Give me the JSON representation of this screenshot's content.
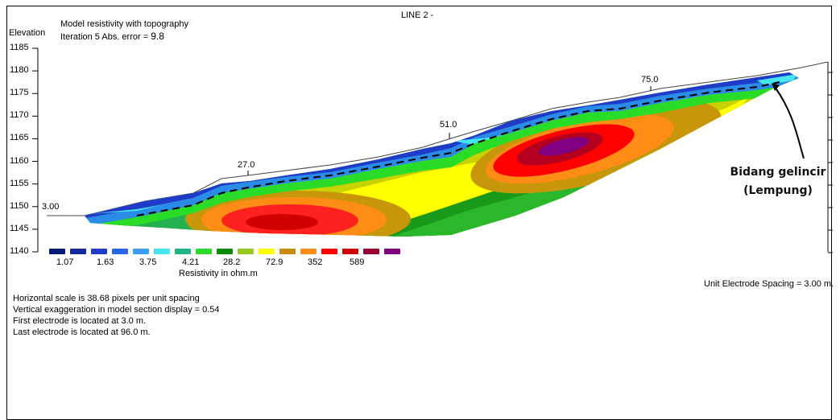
{
  "line_title": "LINE 2 -",
  "model_title": "Model resistivity with topography",
  "iteration": {
    "label": "Iteration 5 Abs. error = ",
    "value": "9.8"
  },
  "axis": {
    "label": "Elevation",
    "ticks": [
      1185,
      1180,
      1175,
      1170,
      1165,
      1160,
      1155,
      1150,
      1145,
      1140
    ]
  },
  "distance_labels": [
    "3.00",
    "27.0",
    "51.0",
    "75.0"
  ],
  "legend": {
    "title": "Resistivity in ohm.m",
    "values": [
      "1.07",
      "1.63",
      "3.75",
      "4.21",
      "28.2",
      "72.9",
      "352",
      "589"
    ],
    "colors": [
      "#0a1a78",
      "#1428a0",
      "#1e3cc8",
      "#2a64e6",
      "#3c9ef0",
      "#46e6f0",
      "#22b482",
      "#28dc28",
      "#0a8c0a",
      "#96c81e",
      "#ffff00",
      "#c88c0a",
      "#ff8c14",
      "#ff0000",
      "#d20000",
      "#960032",
      "#800080"
    ]
  },
  "electrode_spacing": "Unit Electrode Spacing = 3.00 m.",
  "info_lines": [
    "Horizontal scale is 38.68 pixels per unit spacing",
    "Vertical exaggeration in model section display = 0.54",
    "First electrode is located at 3.0  m.",
    "Last electrode is located at 96.0 m."
  ],
  "annotation": {
    "line1": "Bidang gelincir",
    "line2": "(Lempung)"
  }
}
